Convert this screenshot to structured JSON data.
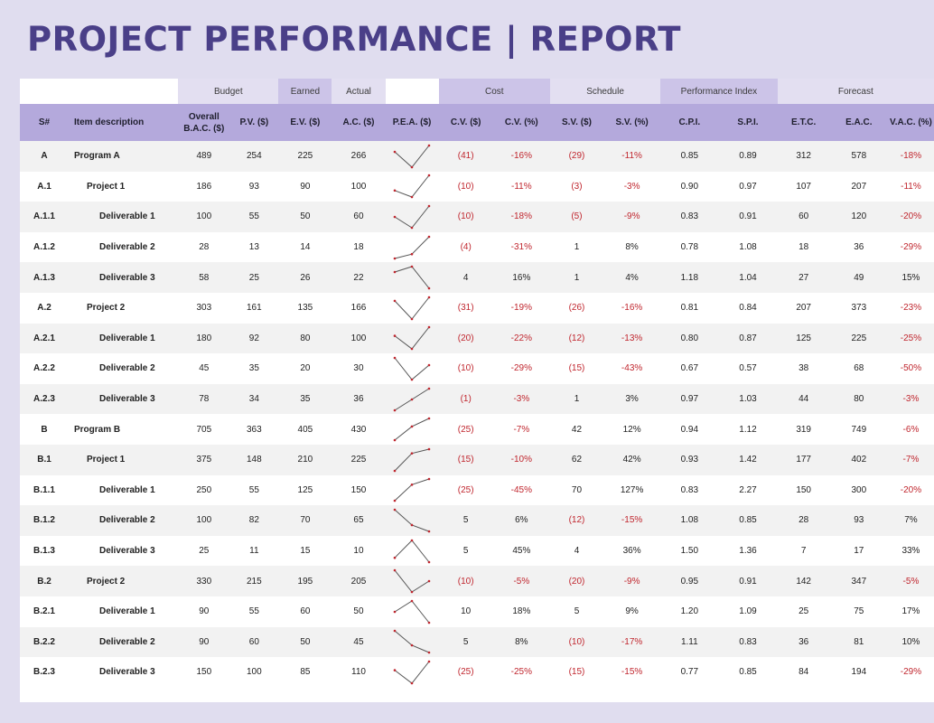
{
  "title": "PROJECT PERFORMANCE  |  REPORT",
  "groups": {
    "budget": "Budget",
    "earned": "Earned",
    "actual": "Actual",
    "cost": "Cost",
    "schedule": "Schedule",
    "performance_index": "Performance Index",
    "forecast": "Forecast"
  },
  "columns": {
    "sn": "S#",
    "desc": "Item description",
    "bac": "Overall B.A.C. ($)",
    "pv": "P.V. ($)",
    "ev": "E.V. ($)",
    "ac": "A.C. ($)",
    "pea": "P.E.A. ($)",
    "cv": "C.V. ($)",
    "cvp": "C.V. (%)",
    "sv": "S.V. ($)",
    "svp": "S.V. (%)",
    "cpi": "C.P.I.",
    "spi": "S.P.I.",
    "etc": "E.T.C.",
    "eac": "E.A.C.",
    "vac": "V.A.C. (%)"
  },
  "colors": {
    "accent": "#4a3f88",
    "header": "#b4a9dc",
    "negative": "#c0262e"
  },
  "rows": [
    {
      "sn": "A",
      "desc": "Program A",
      "level": 0,
      "bac": "489",
      "pv": "254",
      "ev": "225",
      "ac": "266",
      "cv": "(41)",
      "cvp": "-16%",
      "sv": "(29)",
      "svp": "-11%",
      "cpi": "0.85",
      "spi": "0.89",
      "etc": "312",
      "eac": "578",
      "vac": "-18%"
    },
    {
      "sn": "A.1",
      "desc": "Project 1",
      "level": 1,
      "bac": "186",
      "pv": "93",
      "ev": "90",
      "ac": "100",
      "cv": "(10)",
      "cvp": "-11%",
      "sv": "(3)",
      "svp": "-3%",
      "cpi": "0.90",
      "spi": "0.97",
      "etc": "107",
      "eac": "207",
      "vac": "-11%"
    },
    {
      "sn": "A.1.1",
      "desc": "Deliverable 1",
      "level": 2,
      "bac": "100",
      "pv": "55",
      "ev": "50",
      "ac": "60",
      "cv": "(10)",
      "cvp": "-18%",
      "sv": "(5)",
      "svp": "-9%",
      "cpi": "0.83",
      "spi": "0.91",
      "etc": "60",
      "eac": "120",
      "vac": "-20%"
    },
    {
      "sn": "A.1.2",
      "desc": "Deliverable 2",
      "level": 2,
      "bac": "28",
      "pv": "13",
      "ev": "14",
      "ac": "18",
      "cv": "(4)",
      "cvp": "-31%",
      "sv": "1",
      "svp": "8%",
      "cpi": "0.78",
      "spi": "1.08",
      "etc": "18",
      "eac": "36",
      "vac": "-29%"
    },
    {
      "sn": "A.1.3",
      "desc": "Deliverable 3",
      "level": 2,
      "bac": "58",
      "pv": "25",
      "ev": "26",
      "ac": "22",
      "cv": "4",
      "cvp": "16%",
      "sv": "1",
      "svp": "4%",
      "cpi": "1.18",
      "spi": "1.04",
      "etc": "27",
      "eac": "49",
      "vac": "15%"
    },
    {
      "sn": "A.2",
      "desc": "Project 2",
      "level": 1,
      "bac": "303",
      "pv": "161",
      "ev": "135",
      "ac": "166",
      "cv": "(31)",
      "cvp": "-19%",
      "sv": "(26)",
      "svp": "-16%",
      "cpi": "0.81",
      "spi": "0.84",
      "etc": "207",
      "eac": "373",
      "vac": "-23%"
    },
    {
      "sn": "A.2.1",
      "desc": "Deliverable 1",
      "level": 2,
      "bac": "180",
      "pv": "92",
      "ev": "80",
      "ac": "100",
      "cv": "(20)",
      "cvp": "-22%",
      "sv": "(12)",
      "svp": "-13%",
      "cpi": "0.80",
      "spi": "0.87",
      "etc": "125",
      "eac": "225",
      "vac": "-25%"
    },
    {
      "sn": "A.2.2",
      "desc": "Deliverable 2",
      "level": 2,
      "bac": "45",
      "pv": "35",
      "ev": "20",
      "ac": "30",
      "cv": "(10)",
      "cvp": "-29%",
      "sv": "(15)",
      "svp": "-43%",
      "cpi": "0.67",
      "spi": "0.57",
      "etc": "38",
      "eac": "68",
      "vac": "-50%"
    },
    {
      "sn": "A.2.3",
      "desc": "Deliverable 3",
      "level": 2,
      "bac": "78",
      "pv": "34",
      "ev": "35",
      "ac": "36",
      "cv": "(1)",
      "cvp": "-3%",
      "sv": "1",
      "svp": "3%",
      "cpi": "0.97",
      "spi": "1.03",
      "etc": "44",
      "eac": "80",
      "vac": "-3%"
    },
    {
      "sn": "B",
      "desc": "Program B",
      "level": 0,
      "bac": "705",
      "pv": "363",
      "ev": "405",
      "ac": "430",
      "cv": "(25)",
      "cvp": "-7%",
      "sv": "42",
      "svp": "12%",
      "cpi": "0.94",
      "spi": "1.12",
      "etc": "319",
      "eac": "749",
      "vac": "-6%"
    },
    {
      "sn": "B.1",
      "desc": "Project 1",
      "level": 1,
      "bac": "375",
      "pv": "148",
      "ev": "210",
      "ac": "225",
      "cv": "(15)",
      "cvp": "-10%",
      "sv": "62",
      "svp": "42%",
      "cpi": "0.93",
      "spi": "1.42",
      "etc": "177",
      "eac": "402",
      "vac": "-7%"
    },
    {
      "sn": "B.1.1",
      "desc": "Deliverable 1",
      "level": 2,
      "bac": "250",
      "pv": "55",
      "ev": "125",
      "ac": "150",
      "cv": "(25)",
      "cvp": "-45%",
      "sv": "70",
      "svp": "127%",
      "cpi": "0.83",
      "spi": "2.27",
      "etc": "150",
      "eac": "300",
      "vac": "-20%"
    },
    {
      "sn": "B.1.2",
      "desc": "Deliverable 2",
      "level": 2,
      "bac": "100",
      "pv": "82",
      "ev": "70",
      "ac": "65",
      "cv": "5",
      "cvp": "6%",
      "sv": "(12)",
      "svp": "-15%",
      "cpi": "1.08",
      "spi": "0.85",
      "etc": "28",
      "eac": "93",
      "vac": "7%"
    },
    {
      "sn": "B.1.3",
      "desc": "Deliverable 3",
      "level": 2,
      "bac": "25",
      "pv": "11",
      "ev": "15",
      "ac": "10",
      "cv": "5",
      "cvp": "45%",
      "sv": "4",
      "svp": "36%",
      "cpi": "1.50",
      "spi": "1.36",
      "etc": "7",
      "eac": "17",
      "vac": "33%"
    },
    {
      "sn": "B.2",
      "desc": "Project 2",
      "level": 1,
      "bac": "330",
      "pv": "215",
      "ev": "195",
      "ac": "205",
      "cv": "(10)",
      "cvp": "-5%",
      "sv": "(20)",
      "svp": "-9%",
      "cpi": "0.95",
      "spi": "0.91",
      "etc": "142",
      "eac": "347",
      "vac": "-5%"
    },
    {
      "sn": "B.2.1",
      "desc": "Deliverable 1",
      "level": 2,
      "bac": "90",
      "pv": "55",
      "ev": "60",
      "ac": "50",
      "cv": "10",
      "cvp": "18%",
      "sv": "5",
      "svp": "9%",
      "cpi": "1.20",
      "spi": "1.09",
      "etc": "25",
      "eac": "75",
      "vac": "17%"
    },
    {
      "sn": "B.2.2",
      "desc": "Deliverable 2",
      "level": 2,
      "bac": "90",
      "pv": "60",
      "ev": "50",
      "ac": "45",
      "cv": "5",
      "cvp": "8%",
      "sv": "(10)",
      "svp": "-17%",
      "cpi": "1.11",
      "spi": "0.83",
      "etc": "36",
      "eac": "81",
      "vac": "10%"
    },
    {
      "sn": "B.2.3",
      "desc": "Deliverable 3",
      "level": 2,
      "bac": "150",
      "pv": "100",
      "ev": "85",
      "ac": "110",
      "cv": "(25)",
      "cvp": "-25%",
      "sv": "(15)",
      "svp": "-15%",
      "cpi": "0.77",
      "spi": "0.85",
      "etc": "84",
      "eac": "194",
      "vac": "-29%"
    }
  ]
}
